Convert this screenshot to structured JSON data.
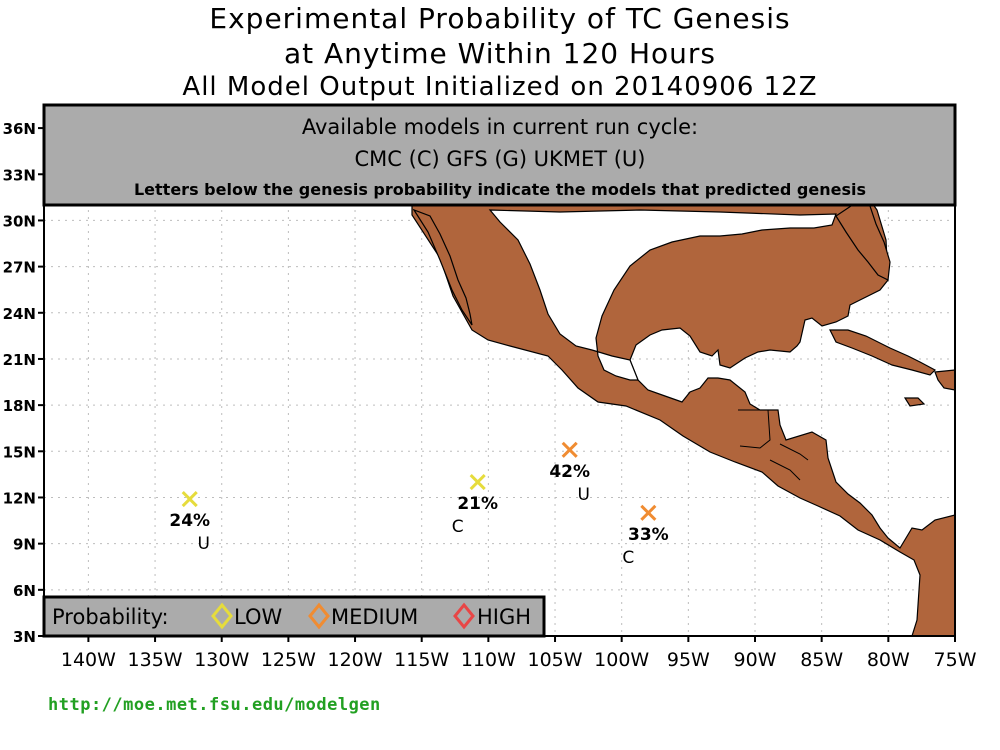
{
  "title": {
    "line1": "Experimental Probability of TC Genesis",
    "line2": "at Anytime Within 120 Hours",
    "line3": "All Model Output Initialized on 20140906 12Z"
  },
  "models_box": {
    "line1": "Available models in current run cycle:",
    "line2": "CMC (C) GFS (G)  UKMET (U)",
    "line3": "Letters below the genesis probability indicate the models that predicted genesis"
  },
  "legend": {
    "title": "Probability:",
    "items": [
      {
        "label": "LOW",
        "color": "#e6dc3c"
      },
      {
        "label": "MEDIUM",
        "color": "#f08c32"
      },
      {
        "label": "HIGH",
        "color": "#e84646"
      }
    ]
  },
  "axes": {
    "lat_ticks": [
      "36N",
      "33N",
      "30N",
      "27N",
      "24N",
      "21N",
      "18N",
      "15N",
      "12N",
      "9N",
      "6N",
      "3N"
    ],
    "lon_ticks": [
      "140W",
      "135W",
      "130W",
      "125W",
      "120W",
      "115W",
      "110W",
      "105W",
      "100W",
      "95W",
      "90W",
      "85W",
      "80W",
      "75W"
    ]
  },
  "markers": [
    {
      "lon": -132.4,
      "lat": 11.9,
      "prob": "24%",
      "models": "U",
      "level": "LOW"
    },
    {
      "lon": -110.8,
      "lat": 13.0,
      "prob": "21%",
      "models": "C",
      "level": "LOW"
    },
    {
      "lon": -103.9,
      "lat": 15.1,
      "prob": "42%",
      "models": "U",
      "level": "MEDIUM"
    },
    {
      "lon": -98.0,
      "lat": 11.0,
      "prob": "33%",
      "models": "C",
      "level": "MEDIUM"
    }
  ],
  "colors": {
    "land": "#b0653c",
    "ocean": "#ffffff",
    "box_fill": "#ababab",
    "url": "#22a022"
  },
  "footer": {
    "url": "http://moe.met.fsu.edu/modelgen"
  }
}
